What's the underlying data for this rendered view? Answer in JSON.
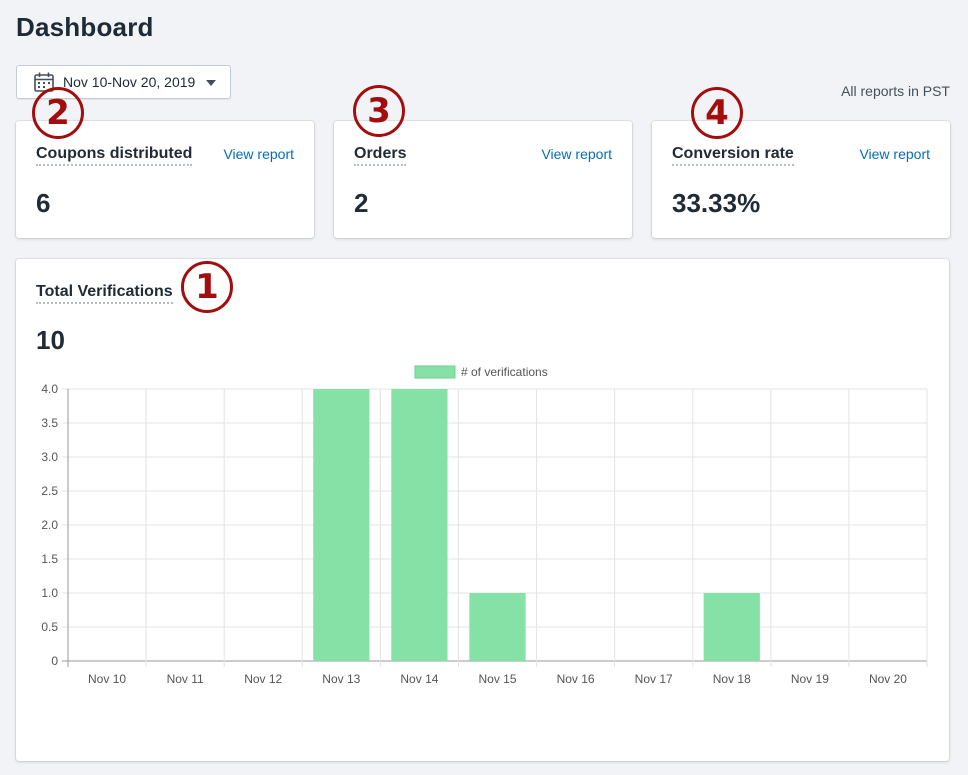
{
  "page": {
    "title": "Dashboard"
  },
  "date_picker": {
    "label": "Nov 10-Nov 20, 2019",
    "icon": "calendar-icon"
  },
  "timezone_note": "All reports in PST",
  "metrics": [
    {
      "title": "Coupons distributed",
      "link": "View report",
      "value": "6",
      "annotation": "2"
    },
    {
      "title": "Orders",
      "link": "View report",
      "value": "2",
      "annotation": "3"
    },
    {
      "title": "Conversion rate",
      "link": "View report",
      "value": "33.33%",
      "annotation": "4"
    }
  ],
  "verifications": {
    "title": "Total Verifications",
    "value": "10",
    "annotation": "1"
  },
  "colors": {
    "bar": "#86e1a6",
    "link": "#006fbb",
    "annotation": "#a30d0d"
  },
  "chart_data": {
    "type": "bar",
    "categories": [
      "Nov 10",
      "Nov 11",
      "Nov 12",
      "Nov 13",
      "Nov 14",
      "Nov 15",
      "Nov 16",
      "Nov 17",
      "Nov 18",
      "Nov 19",
      "Nov 20"
    ],
    "series": [
      {
        "name": "# of verifications",
        "values": [
          0,
          0,
          0,
          4,
          4,
          1,
          0,
          0,
          1,
          0,
          0
        ]
      }
    ],
    "ylim": [
      0,
      4
    ],
    "yticks": [
      "0",
      "0.5",
      "1.0",
      "1.5",
      "2.0",
      "2.5",
      "3.0",
      "3.5",
      "4.0"
    ],
    "grid": true,
    "legend": "top-center"
  }
}
